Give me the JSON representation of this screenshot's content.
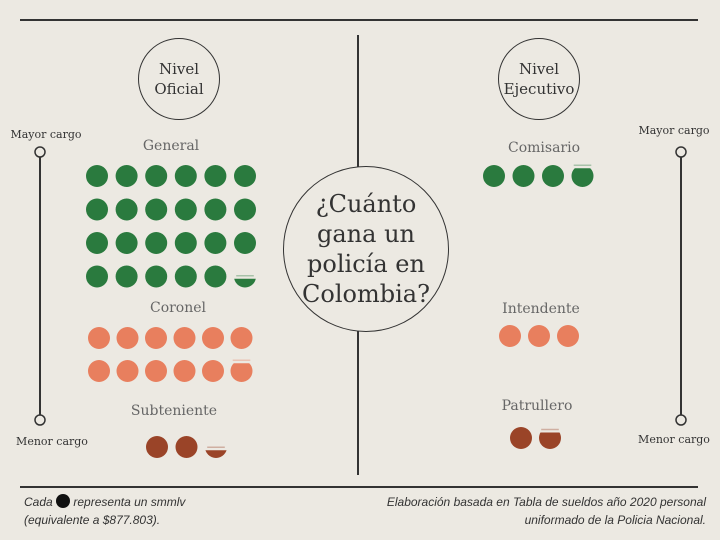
{
  "chart_data": {
    "type": "pictogram",
    "title": "¿Cuánto gana un policía en Colombia?",
    "unit_note": "Cada ● representa un smmlv (equivalente a $877.803).",
    "groups": [
      {
        "name": "Nivel Oficial",
        "categories": [
          {
            "label": "General",
            "value": 23.4,
            "color": "#2a7a3e"
          },
          {
            "label": "Coronel",
            "value": 11.85,
            "color": "#e87f5e"
          },
          {
            "label": "Subteniente",
            "value": 2.35,
            "color": "#9a4428"
          }
        ]
      },
      {
        "name": "Nivel Ejecutivo",
        "categories": [
          {
            "label": "Comisario",
            "value": 3.85,
            "color": "#2a7a3e"
          },
          {
            "label": "Intendente",
            "value": 3,
            "color": "#e87f5e"
          },
          {
            "label": "Patrullero",
            "value": 1.75,
            "color": "#9a4428"
          }
        ]
      }
    ]
  },
  "text": {
    "oficial_1": "Nivel",
    "oficial_2": "Oficial",
    "ejecutivo_1": "Nivel",
    "ejecutivo_2": "Ejecutivo",
    "title_lines": [
      "¿Cuánto",
      "gana un",
      "policía en",
      "Colombia?"
    ],
    "mayor": "Mayor cargo",
    "menor": "Menor cargo",
    "foot_left_1a": "Cada",
    "foot_left_1b": "representa un smmlv",
    "foot_left_2": "(equivalente a $877.803).",
    "foot_right_1": "Elaboración basada en Tabla de sueldos año 2020 personal",
    "foot_right_2": "uniformado de la Policia Nacional."
  }
}
